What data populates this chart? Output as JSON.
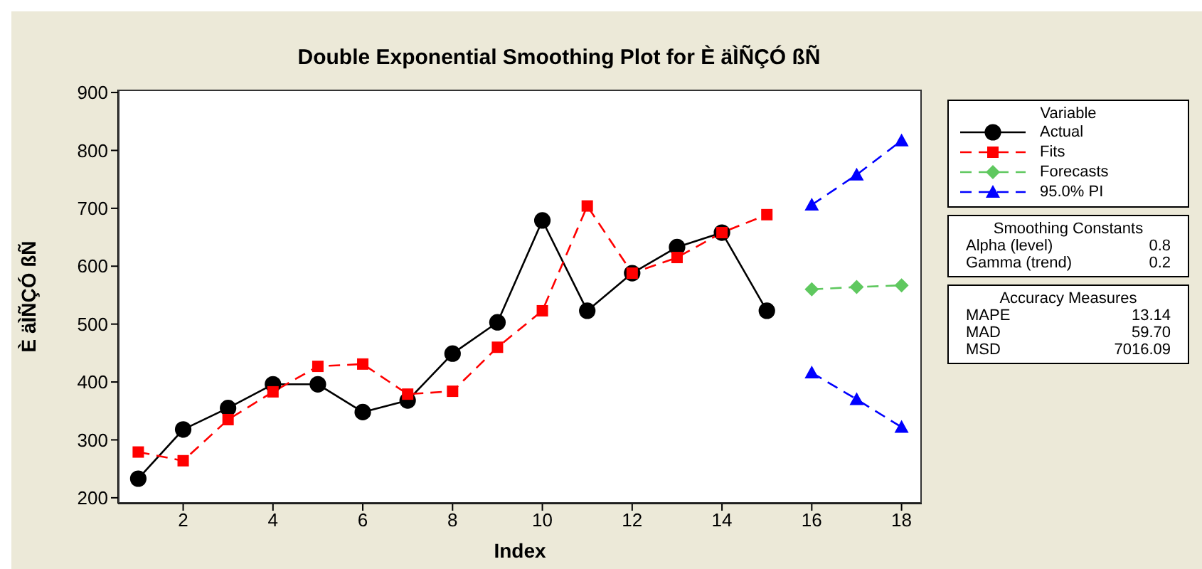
{
  "chart_data": {
    "type": "line",
    "title": "Double Exponential Smoothing Plot for È äÌÑÇÓ ßÑ",
    "xlabel": "Index",
    "ylabel": "È äÌÑÇÓ ßÑ",
    "legend_title": "Variable",
    "legend": "right",
    "xlim": [
      0.55,
      18.45
    ],
    "xticks": [
      2,
      4,
      6,
      8,
      10,
      12,
      14,
      16,
      18
    ],
    "ylim": [
      190,
      905
    ],
    "yticks": [
      200,
      300,
      400,
      500,
      600,
      700,
      800,
      900
    ],
    "series": [
      {
        "name": "Actual",
        "color": "#000000",
        "marker": "circle",
        "line_style": "solid",
        "x": [
          1,
          2,
          3,
          4,
          5,
          6,
          7,
          8,
          9,
          10,
          11,
          12,
          13,
          14,
          15
        ],
        "values": [
          233,
          318,
          355,
          396,
          396,
          348,
          368,
          449,
          503,
          679,
          523,
          588,
          633,
          658,
          523
        ]
      },
      {
        "name": "Fits",
        "color": "#ff0000",
        "marker": "square",
        "line_style": "dashed",
        "x": [
          1,
          2,
          3,
          4,
          5,
          6,
          7,
          8,
          9,
          10,
          11,
          12,
          13,
          14,
          15
        ],
        "values": [
          279,
          264,
          335,
          383,
          427,
          431,
          379,
          384,
          460,
          523,
          704,
          588,
          615,
          658,
          689
        ]
      },
      {
        "name": "Forecasts",
        "color": "#5fc85f",
        "marker": "diamond",
        "line_style": "dashed",
        "x": [
          16,
          17,
          18
        ],
        "values": [
          560,
          564,
          567
        ]
      },
      {
        "name": "95.0% PI",
        "color": "#0000ff",
        "marker": "triangle",
        "line_style": "dashed",
        "x": [
          16,
          17,
          18
        ],
        "values": [
          706,
          758,
          817
        ]
      },
      {
        "color": "#0000ff",
        "marker": "triangle",
        "line_style": "dashed",
        "x": [
          16,
          17,
          18
        ],
        "values": [
          416,
          370,
          322
        ]
      }
    ],
    "annotations": [
      "Smoothing Constants\nAlpha (level)\t0.8\nGamma (trend)\t0.2",
      "Accuracy Measures\nMAPE\t13.14\nMAD\t59.70\nMSD\t7016.09"
    ]
  }
}
